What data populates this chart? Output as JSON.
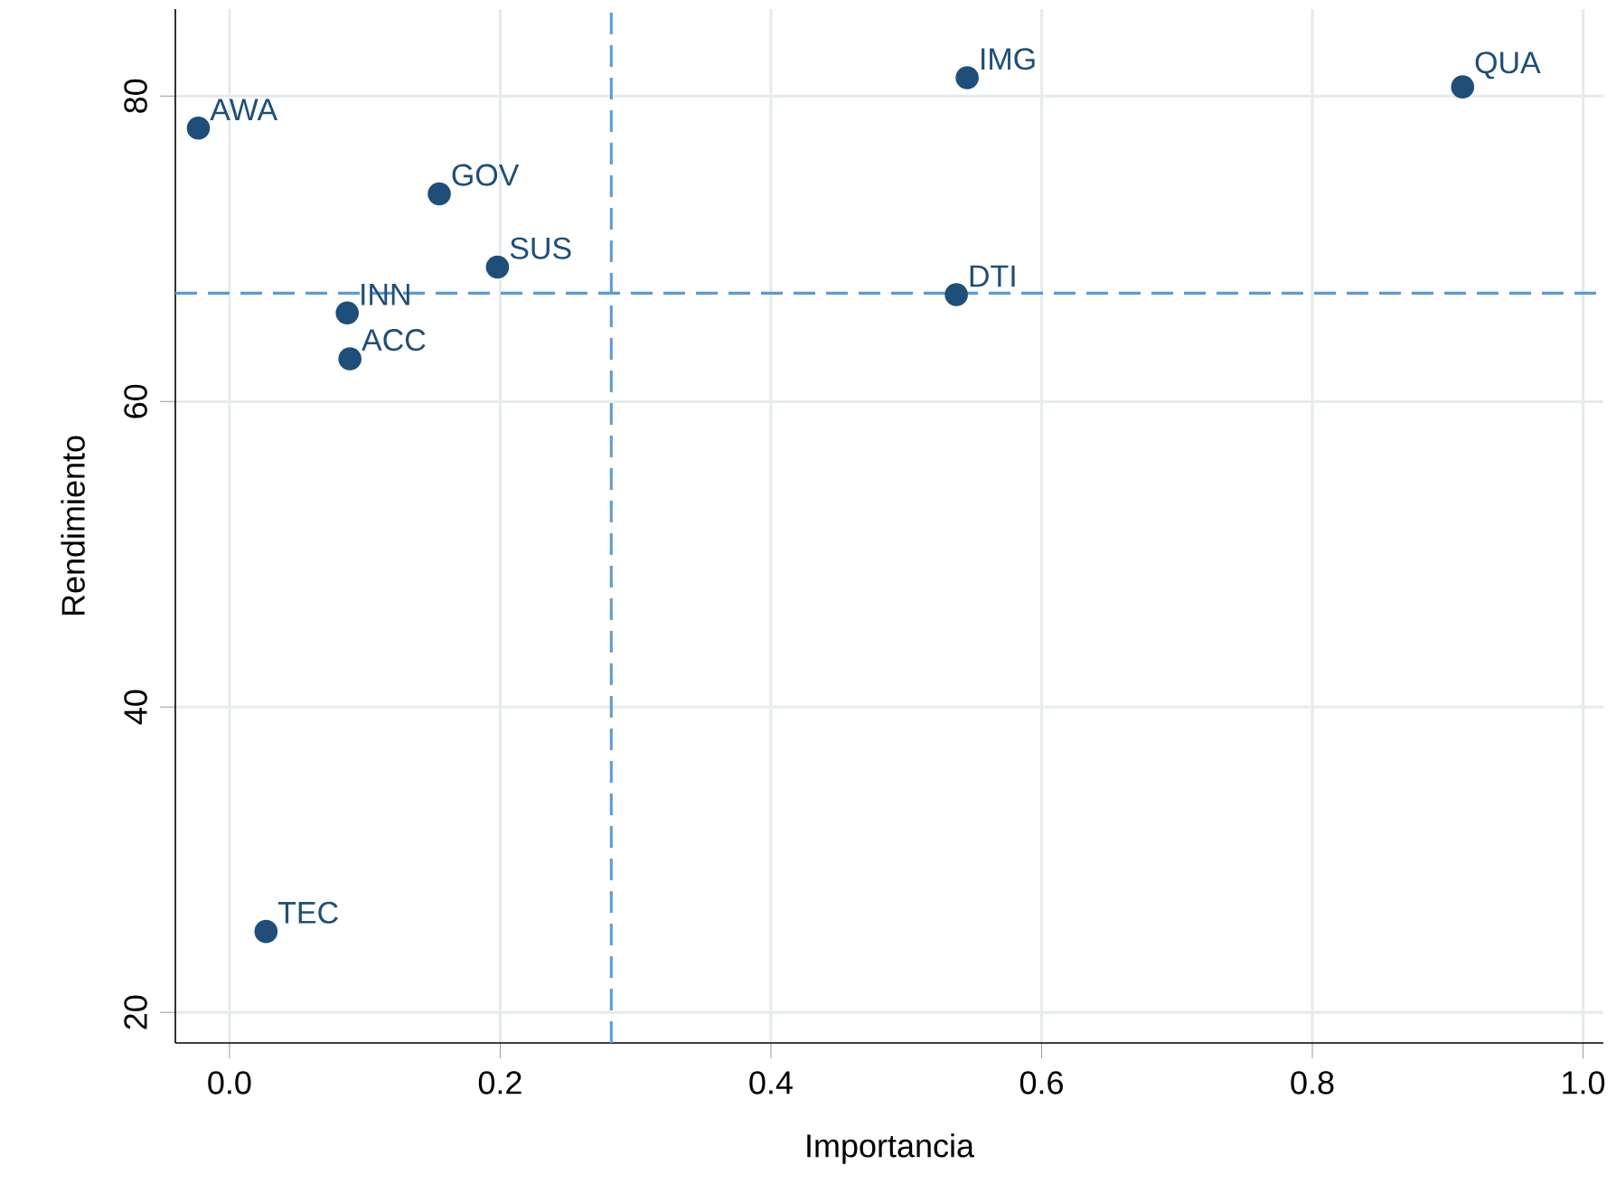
{
  "chart_data": {
    "type": "scatter",
    "xlabel": "Importancia",
    "ylabel": "Rendimiento",
    "series": [
      {
        "color": "#1f4e79",
        "x": [
          -0.023,
          0.155,
          0.198,
          0.087,
          0.089,
          0.027,
          0.545,
          0.911,
          0.537
        ],
        "values": [
          77.9,
          73.6,
          68.8,
          65.8,
          62.8,
          25.3,
          81.2,
          80.6,
          67.0
        ]
      }
    ],
    "annotations": [
      {
        "text": "AWA",
        "x": -0.023,
        "y": 77.9
      },
      {
        "text": "GOV",
        "x": 0.155,
        "y": 73.6
      },
      {
        "text": "SUS",
        "x": 0.198,
        "y": 68.8
      },
      {
        "text": "INN",
        "x": 0.087,
        "y": 65.8
      },
      {
        "text": "ACC",
        "x": 0.089,
        "y": 62.8
      },
      {
        "text": "TEC",
        "x": 0.027,
        "y": 25.3
      },
      {
        "text": "IMG",
        "x": 0.545,
        "y": 81.2
      },
      {
        "text": "QUA",
        "x": 0.911,
        "y": 80.6
      },
      {
        "text": "DTI",
        "x": 0.537,
        "y": 67.0
      }
    ],
    "ref_lines": [
      {
        "axis": "x",
        "value": 0.282,
        "color": "#5b9bd5",
        "line_style": "dashed"
      },
      {
        "axis": "y",
        "value": 67.1,
        "color": "#5b9bd5",
        "line_style": "dashed"
      }
    ],
    "xlim": [
      -0.04,
      1.015
    ],
    "ylim": [
      18,
      85.7
    ],
    "xticks": [
      {
        "value": 0,
        "label": "0.0"
      },
      0.2,
      0.4,
      0.6,
      0.8,
      {
        "value": 1,
        "label": "1.0"
      }
    ],
    "yticks": [
      20,
      40,
      60,
      80
    ],
    "grid": true
  }
}
